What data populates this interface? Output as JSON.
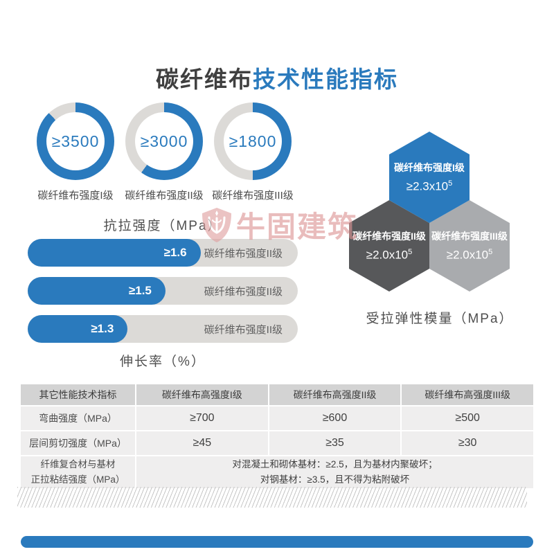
{
  "title": {
    "dark": "碳纤维布",
    "accent": "技术性能指标"
  },
  "colors": {
    "blue": "#2a7abd",
    "track_gray": "#dcdad7",
    "hex_dark": "#57585a",
    "hex_light": "#a9abae",
    "watermark_pink": "#dd9494"
  },
  "watermark": {
    "text": "牛固建筑",
    "logo": "niugu-bull-shield"
  },
  "chart_data": [
    {
      "type": "pie",
      "subtype": "donut-group",
      "title": "抗拉强度（MPa）",
      "unit": "MPa",
      "items": [
        {
          "label": "碳纤维布强度I级",
          "value": "≥3500",
          "percent": 88
        },
        {
          "label": "碳纤维布强度II级",
          "value": "≥3000",
          "percent": 60
        },
        {
          "label": "碳纤维布强度III级",
          "value": "≥1800",
          "percent": 50
        }
      ]
    },
    {
      "type": "bar",
      "title": "伸长率（%）",
      "unit": "%",
      "items": [
        {
          "label": "碳纤维布强度II级",
          "value": "≥1.6",
          "percent": 64
        },
        {
          "label": "碳纤维布强度II级",
          "value": "≥1.5",
          "percent": 51
        },
        {
          "label": "碳纤维布强度II级",
          "value": "≥1.3",
          "percent": 37
        }
      ]
    },
    {
      "type": "other",
      "subtype": "hexagon-group",
      "title": "受拉弹性模量（MPa）",
      "unit": "MPa",
      "items": [
        {
          "label": "碳纤维布强度I级",
          "value": "≥2.3x10",
          "sup": "5",
          "color": "#2a7abd"
        },
        {
          "label": "碳纤维布强度II级",
          "value": "≥2.0x10",
          "sup": "5",
          "color": "#57585a"
        },
        {
          "label": "碳纤维布强度III级",
          "value": "≥2.0x10",
          "sup": "5",
          "color": "#a9abae"
        }
      ]
    }
  ],
  "table": {
    "headers": [
      "其它性能技术指标",
      "碳纤维布高强度I级",
      "碳纤维布高强度II级",
      "碳纤维布高强度III级"
    ],
    "rows": [
      [
        "弯曲强度（MPa）",
        "≥700",
        "≥600",
        "≥500"
      ],
      [
        "层间剪切强度（MPa）",
        "≥45",
        "≥35",
        "≥30"
      ]
    ],
    "bond_row": {
      "label_lines": [
        "纤维复合材与基材",
        "正拉粘结强度（MPa）"
      ],
      "value_lines": [
        "对混凝土和砌体基材：≥2.5，且为基材内聚破坏；",
        "对钢基材：≥3.5，且不得为粘附破坏"
      ]
    }
  }
}
